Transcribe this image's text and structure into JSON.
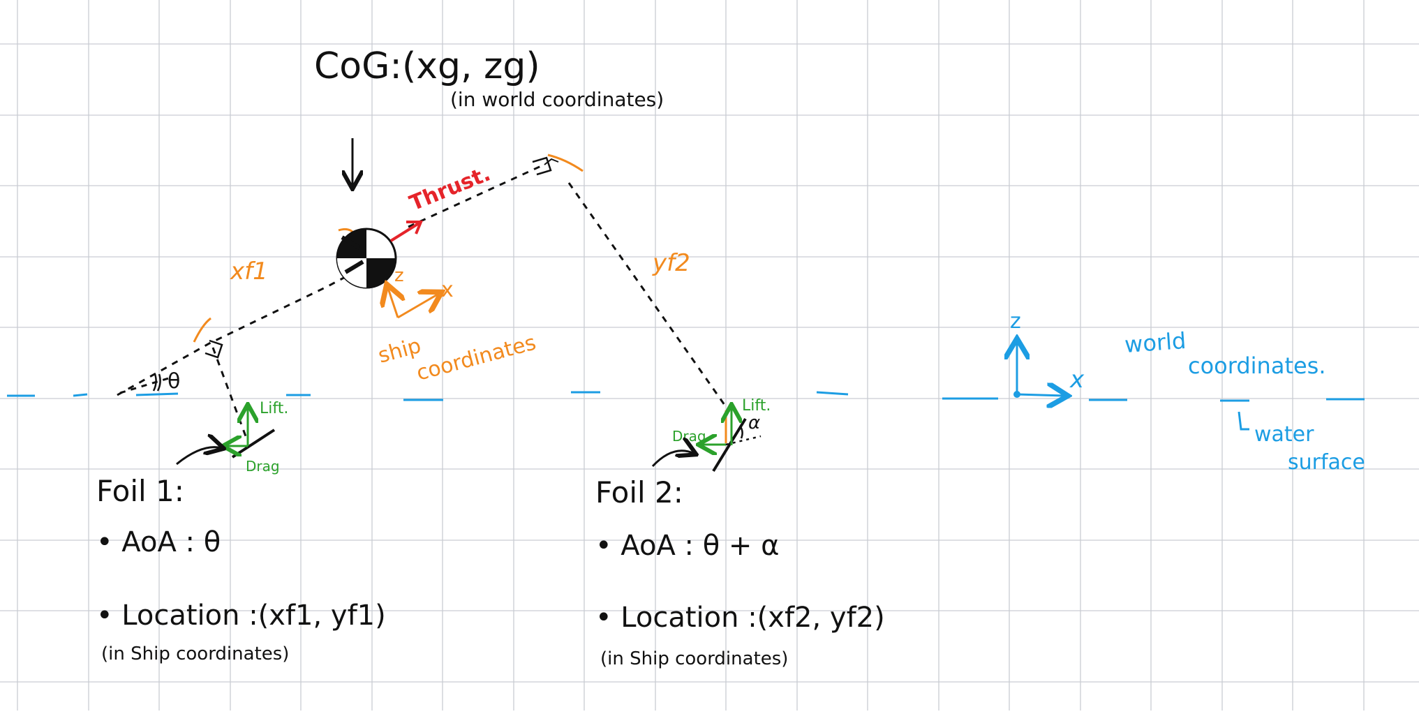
{
  "colors": {
    "ink": "#111111",
    "grid": "#c9ccd3",
    "orange": "#f28a1e",
    "red": "#e5242a",
    "green": "#2ba12b",
    "blue": "#1c9de3"
  },
  "cog": {
    "title": "CoG:(xg, zg)",
    "subtitle": "(in world coordinates)"
  },
  "ship": {
    "thrust_label": "Thrust.",
    "xf1_label": "xf1",
    "yf2_label": "yf2",
    "axis_z": "z",
    "axis_x": "x",
    "coord_line1": "ship",
    "coord_line2": "coordinates",
    "theta_label": "θ"
  },
  "foil1": {
    "lift_label": "Lift.",
    "drag_label": "Drag",
    "heading": "Foil 1:",
    "aoa": "• AoA : θ",
    "location": "• Location  :(xf1, yf1)",
    "location_note": "(in Ship coordinates)"
  },
  "foil2": {
    "lift_label": "Lift.",
    "drag_label": "Drag",
    "alpha_label": "α",
    "heading": "Foil 2:",
    "aoa": "• AoA : θ + α",
    "location": "• Location  :(xf2, yf2)",
    "location_note": "(in Ship coordinates)"
  },
  "world": {
    "axis_z": "z",
    "axis_x": "x",
    "label_line1": "world",
    "label_line2": "coordinates.",
    "water_line1": "water",
    "water_line2": "surface"
  }
}
